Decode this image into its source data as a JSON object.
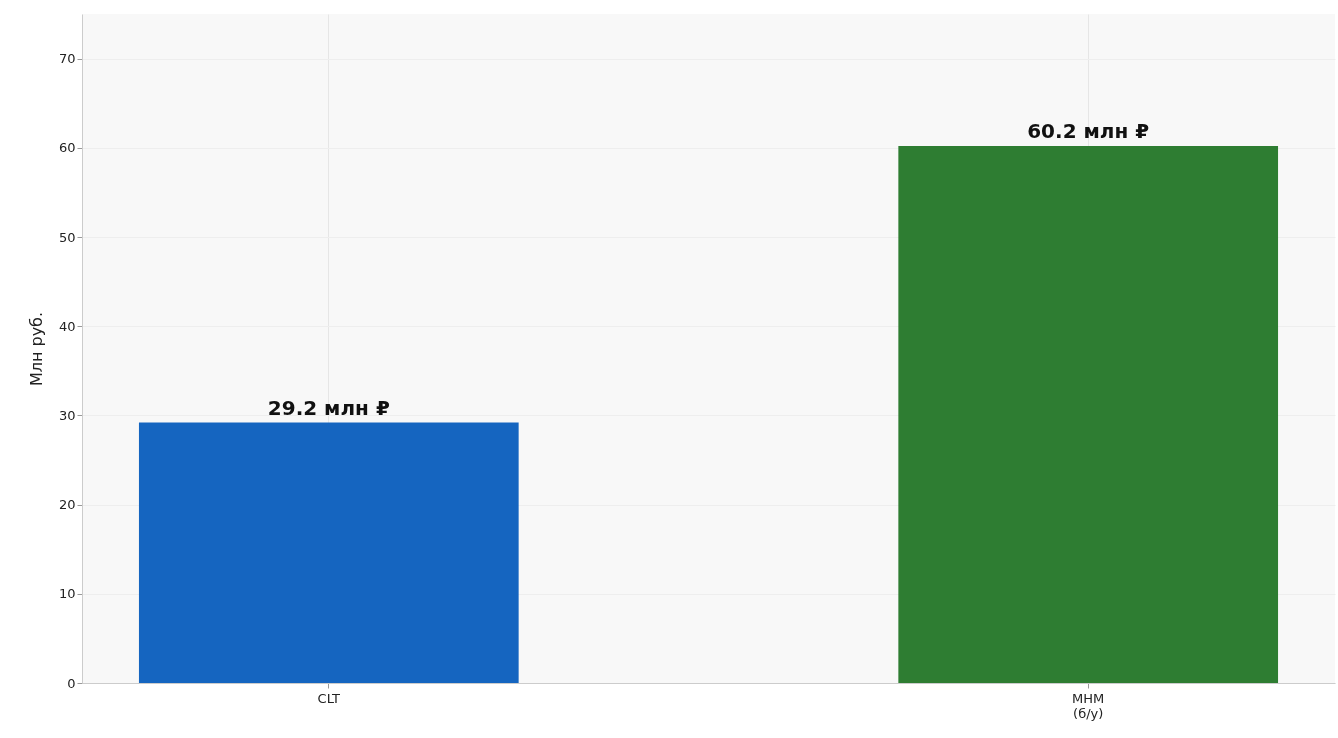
{
  "chart_data": {
    "type": "bar",
    "ylabel": "Млн руб.",
    "categories": [
      "CLT",
      "MHM\n(б/у)"
    ],
    "values": [
      29.2,
      60.2
    ],
    "colors": [
      "#1565c0",
      "#2e7d32"
    ],
    "value_labels": [
      "29.2 млн ₽",
      "60.2 млн ₽"
    ],
    "ylim": [
      0,
      75
    ],
    "yticks": [
      0,
      10,
      20,
      30,
      40,
      50,
      60,
      70
    ],
    "grid": true
  }
}
